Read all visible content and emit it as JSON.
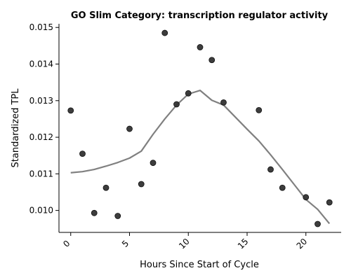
{
  "chart_data": {
    "type": "scatter",
    "title": "GO Slim Category: transcription regulator activity",
    "xlabel": "Hours Since Start of Cycle",
    "ylabel": "Standardized TPL",
    "xlim": [
      -1,
      23
    ],
    "ylim": [
      0.0094,
      0.0151
    ],
    "x_ticks": [
      0,
      5,
      10,
      15,
      20
    ],
    "x_tick_labels": [
      "0",
      "5",
      "10",
      "15",
      "20"
    ],
    "y_ticks": [
      0.01,
      0.011,
      0.012,
      0.013,
      0.014,
      0.015
    ],
    "y_tick_labels": [
      "0.010",
      "0.011",
      "0.012",
      "0.013",
      "0.014",
      "0.015"
    ],
    "grid": false,
    "series": [
      {
        "kind": "scatter",
        "color": "#333333",
        "x": [
          0,
          1,
          2,
          3,
          4,
          5,
          6,
          7,
          8,
          9,
          10,
          11,
          12,
          13,
          16,
          17,
          18,
          20,
          21,
          22
        ],
        "y": [
          0.01273,
          0.01155,
          0.00993,
          0.01062,
          0.00985,
          0.01223,
          0.01072,
          0.0113,
          0.01485,
          0.0129,
          0.0132,
          0.01446,
          0.01411,
          0.01295,
          0.01274,
          0.01112,
          0.01062,
          0.01036,
          0.00963,
          0.01022
        ]
      },
      {
        "kind": "line",
        "color": "#808080",
        "x": [
          0,
          1,
          2,
          3,
          4,
          5,
          6,
          7,
          8,
          9,
          10,
          11,
          12,
          13,
          14,
          15,
          16,
          17,
          18,
          19,
          20,
          21,
          22
        ],
        "y": [
          0.01103,
          0.01106,
          0.01112,
          0.01121,
          0.01131,
          0.01143,
          0.01162,
          0.01208,
          0.0125,
          0.01288,
          0.01318,
          0.01328,
          0.01301,
          0.01288,
          0.01255,
          0.01222,
          0.0119,
          0.01152,
          0.01112,
          0.01071,
          0.0103,
          0.01003,
          0.00964
        ]
      }
    ]
  }
}
